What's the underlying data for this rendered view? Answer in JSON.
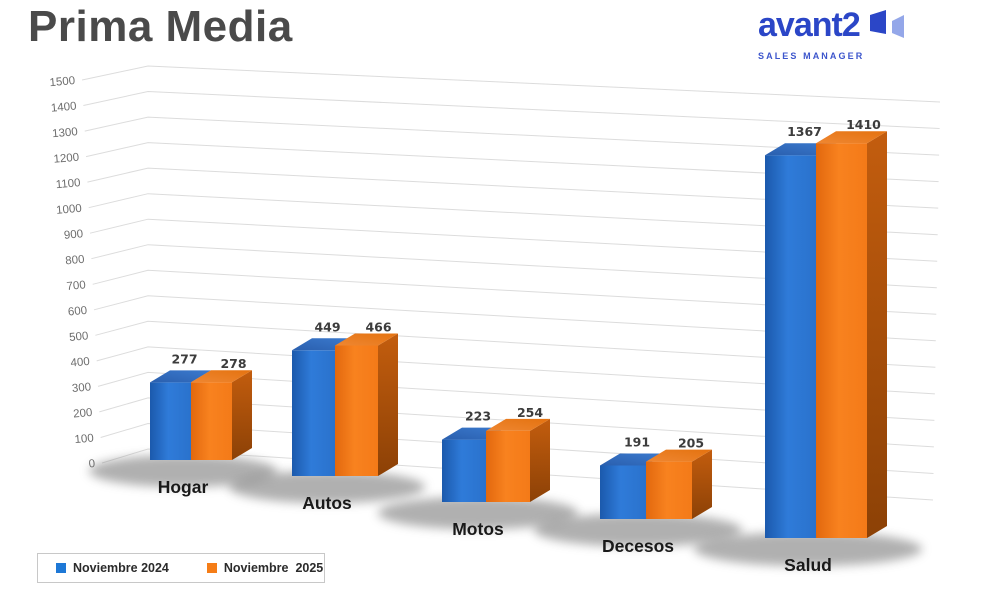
{
  "title": "Prima Media",
  "brand": {
    "name": "avant2",
    "tagline": "SALES MANAGER",
    "color": "#2b46c7",
    "icon_light_color": "#94a7e9"
  },
  "legend": {
    "items": [
      {
        "label": "Noviembre 2024",
        "color": "#1e78d6"
      },
      {
        "label": "Noviembre  2025",
        "color": "#f57d17"
      }
    ]
  },
  "chart_data": {
    "type": "bar",
    "projection": "3d",
    "title": "Prima Media",
    "categories": [
      "Hogar",
      "Autos",
      "Motos",
      "Decesos",
      "Salud"
    ],
    "series": [
      {
        "name": "Noviembre 2024",
        "color": "#2a72cc",
        "values": [
          277,
          449,
          223,
          191,
          1367
        ]
      },
      {
        "name": "Noviembre 2025",
        "color": "#f57c1d",
        "values": [
          278,
          466,
          254,
          205,
          1410
        ]
      }
    ],
    "xlabel": "",
    "ylabel": "",
    "ylim": [
      0,
      1500
    ],
    "ytick_step": 100,
    "grid": true,
    "legend_position": "bottom-left"
  }
}
